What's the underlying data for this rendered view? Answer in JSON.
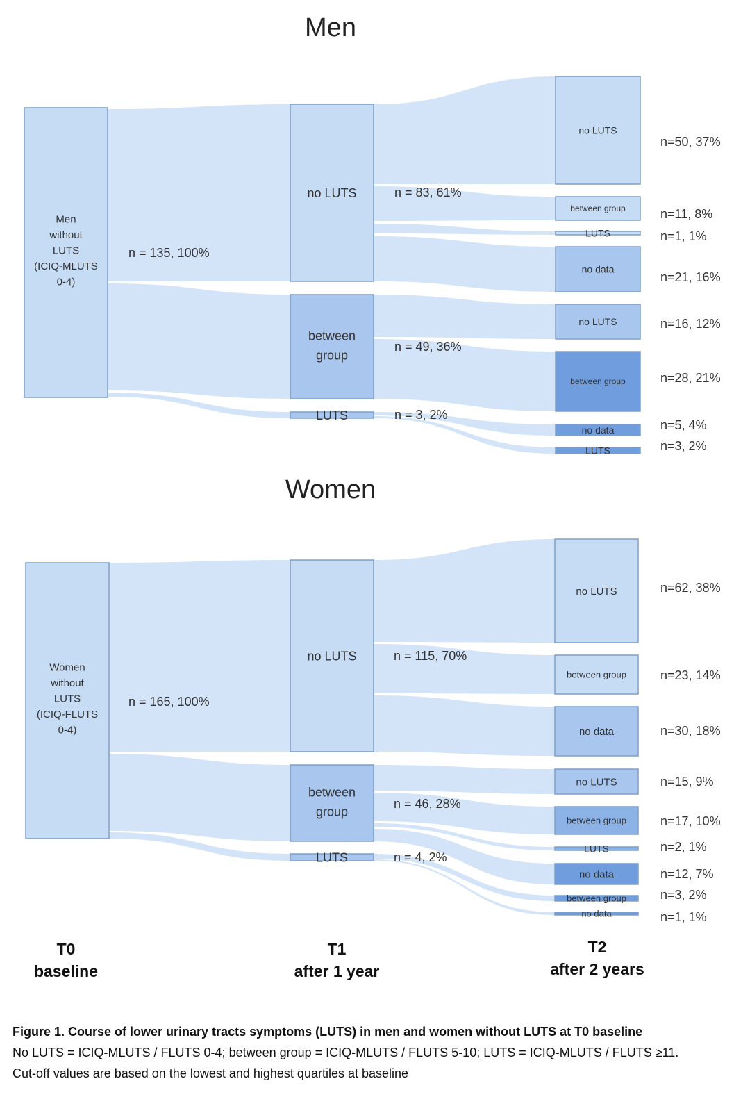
{
  "panels": [
    {
      "title": "Men",
      "flows": {
        "t0": "n = 135, 100%",
        "t1_no_luts": "n = 83, 61%",
        "t1_between": "n = 49, 36%",
        "t1_luts": "n = 3, 2%"
      },
      "t0_label": [
        "Men",
        "without",
        "LUTS",
        "(ICIQ-MLUTS",
        "0-4)"
      ],
      "t1_nodes": [
        [
          "no LUTS"
        ],
        [
          "between",
          "group"
        ],
        [
          "LUTS"
        ]
      ],
      "t2_nodes": [
        "no LUTS",
        "between group",
        "LUTS",
        "no data",
        "no LUTS",
        "between group",
        "no data",
        "LUTS"
      ],
      "t2_counts": [
        "n=50, 37%",
        "n=11, 8%",
        "n=1, 1%",
        "n=21, 16%",
        "n=16, 12%",
        "n=28, 21%",
        "n=5, 4%",
        "n=3, 2%"
      ]
    },
    {
      "title": "Women",
      "flows": {
        "t0": "n = 165, 100%",
        "t1_no_luts": "n = 115, 70%",
        "t1_between": "n = 46, 28%",
        "t1_luts": "n = 4, 2%"
      },
      "t0_label": [
        "Women",
        "without",
        "LUTS",
        "(ICIQ-FLUTS",
        "0-4)"
      ],
      "t1_nodes": [
        [
          "no LUTS"
        ],
        [
          "between",
          "group"
        ],
        [
          "LUTS"
        ]
      ],
      "t2_nodes": [
        "no LUTS",
        "between group",
        "no data",
        "no LUTS",
        "between group",
        "LUTS",
        "no data",
        "between group",
        "no data"
      ],
      "t2_counts": [
        "n=62, 38%",
        "n=23, 14%",
        "n=30, 18%",
        "n=15, 9%",
        "n=17, 10%",
        "n=2, 1%",
        "n=12, 7%",
        "n=3, 2%",
        "n=1, 1%"
      ]
    }
  ],
  "axis": {
    "t0": [
      "T0",
      "baseline"
    ],
    "t1": [
      "T1",
      "after 1 year"
    ],
    "t2": [
      "T2",
      "after 2 years"
    ]
  },
  "caption": {
    "title": "Figure 1. Course of lower urinary tracts symptoms (LUTS) in men and women without LUTS at T0 baseline",
    "line1": "No LUTS = ICIQ-MLUTS / FLUTS 0-4; between group = ICIQ-MLUTS / FLUTS 5-10; LUTS = ICIQ-MLUTS / FLUTS ≥11.",
    "line2": "Cut-off values are based on the lowest and highest quartiles at baseline"
  },
  "colors": {
    "flow": "#cfe1f7",
    "node_light": "#c6dcf5",
    "node_mid": "#a9c7ee",
    "node_dark": "#8db2e6",
    "node_darker": "#6f9ddd",
    "border": "#7f9fc6"
  }
}
